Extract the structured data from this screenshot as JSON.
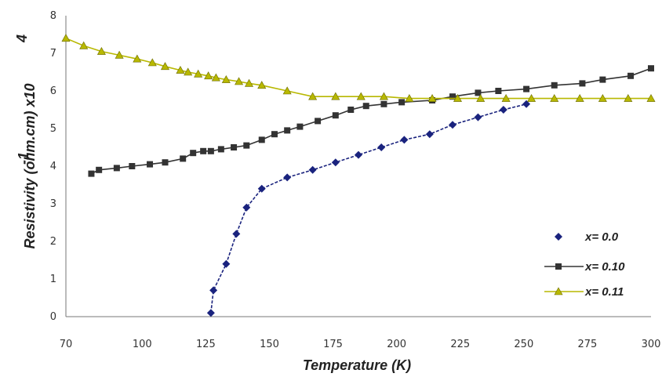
{
  "chart_data": {
    "type": "line",
    "xlabel": "Temperature (K)",
    "ylabel": "Resistivity (ohm.cm) x10",
    "ylabel_exponent": "-1",
    "ylabel_superscript": "4",
    "xlim": [
      70,
      300
    ],
    "ylim": [
      0,
      8
    ],
    "xticks": [
      70,
      100,
      125,
      150,
      175,
      200,
      225,
      250,
      275,
      300
    ],
    "yticks": [
      0,
      1,
      2,
      3,
      4,
      5,
      6,
      7,
      8
    ],
    "legend_position": "bottom-right",
    "series": [
      {
        "name": "x= 0.0",
        "color": "#1a237e",
        "marker": "diamond",
        "x": [
          127,
          128,
          133,
          137,
          141,
          147,
          157,
          167,
          176,
          185,
          194,
          203,
          213,
          222,
          232,
          242,
          251
        ],
        "y": [
          0.1,
          0.7,
          1.4,
          2.2,
          2.9,
          3.4,
          3.7,
          3.9,
          4.1,
          4.3,
          4.5,
          4.7,
          4.85,
          5.1,
          5.3,
          5.5,
          5.65
        ]
      },
      {
        "name": "x= 0.10",
        "color": "#333333",
        "marker": "square",
        "x": [
          80,
          83,
          90,
          96,
          103,
          109,
          116,
          120,
          124,
          127,
          131,
          136,
          141,
          147,
          152,
          157,
          162,
          169,
          176,
          182,
          188,
          195,
          202,
          214,
          222,
          232,
          240,
          251,
          262,
          273,
          281,
          292,
          300
        ],
        "y": [
          3.8,
          3.9,
          3.95,
          4.0,
          4.05,
          4.1,
          4.2,
          4.35,
          4.4,
          4.4,
          4.45,
          4.5,
          4.55,
          4.7,
          4.85,
          4.95,
          5.05,
          5.2,
          5.35,
          5.5,
          5.6,
          5.65,
          5.7,
          5.75,
          5.85,
          5.95,
          6.0,
          6.05,
          6.15,
          6.2,
          6.3,
          6.4,
          6.6
        ]
      },
      {
        "name": "x= 0.11",
        "color": "#b8b800",
        "marker": "triangle",
        "x": [
          70,
          77,
          84,
          91,
          98,
          104,
          109,
          115,
          118,
          122,
          126,
          129,
          133,
          138,
          142,
          147,
          157,
          167,
          176,
          186,
          195,
          205,
          214,
          224,
          233,
          243,
          253,
          262,
          272,
          281,
          291,
          300
        ],
        "y": [
          7.4,
          7.2,
          7.05,
          6.95,
          6.85,
          6.75,
          6.65,
          6.55,
          6.5,
          6.45,
          6.4,
          6.35,
          6.3,
          6.25,
          6.2,
          6.15,
          6.0,
          5.85,
          5.85,
          5.85,
          5.85,
          5.8,
          5.8,
          5.8,
          5.8,
          5.8,
          5.8,
          5.8,
          5.8,
          5.8,
          5.8,
          5.8
        ]
      }
    ]
  }
}
